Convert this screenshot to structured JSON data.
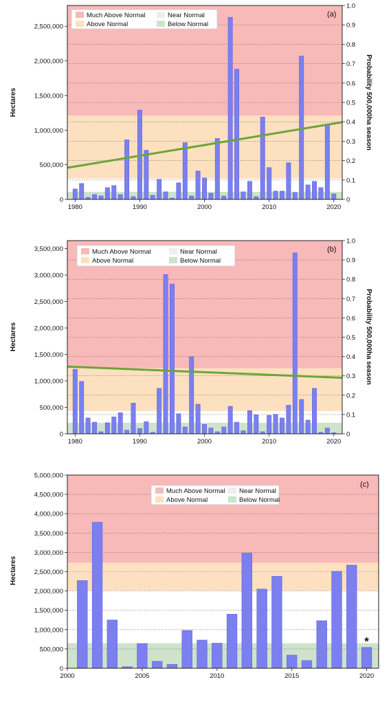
{
  "colors": {
    "much_above": "#f8b9b9",
    "above": "#fde0c0",
    "near": "#ffffff",
    "below": "#cfe3cc",
    "bar_fill": "#7b7fef",
    "bar_stroke": "#5b5fd6",
    "trend": "#6aa53a",
    "legend_near_swatch": "#eeeeee"
  },
  "legend": {
    "much_above": "Much Above Normal",
    "near": "Near Normal",
    "above": "Above Normal",
    "below": "Below Normal"
  },
  "chart_data": [
    {
      "type": "bar",
      "panel_label": "(a)",
      "ylabel": "Hectares",
      "y2label": "Probability 500,000ha season",
      "x": [
        1980,
        1981,
        1982,
        1983,
        1984,
        1985,
        1986,
        1987,
        1988,
        1989,
        1990,
        1991,
        1992,
        1993,
        1994,
        1995,
        1996,
        1997,
        1998,
        1999,
        2000,
        2001,
        2002,
        2003,
        2004,
        2005,
        2006,
        2007,
        2008,
        2009,
        2010,
        2011,
        2012,
        2013,
        2014,
        2015,
        2016,
        2017,
        2018,
        2019,
        2020
      ],
      "values": [
        150000,
        230000,
        30000,
        70000,
        50000,
        170000,
        200000,
        70000,
        860000,
        40000,
        1290000,
        710000,
        60000,
        290000,
        110000,
        20000,
        240000,
        820000,
        50000,
        410000,
        310000,
        90000,
        880000,
        50000,
        2630000,
        1880000,
        110000,
        260000,
        40000,
        1190000,
        460000,
        120000,
        120000,
        530000,
        100000,
        2070000,
        210000,
        260000,
        170000,
        1090000,
        80000
      ],
      "xlim": [
        1978.8,
        2021.3
      ],
      "ylim": [
        0,
        2800000
      ],
      "y2lim": [
        0,
        1.0
      ],
      "xticks": [
        1980,
        1990,
        2000,
        2010,
        2020
      ],
      "yticks": [
        0,
        500000,
        1000000,
        1500000,
        2000000,
        2500000
      ],
      "ytick_labels": [
        "0",
        "500,000",
        "1,000,000",
        "1,500,000",
        "2,000,000",
        "2,500,000"
      ],
      "y2ticks": [
        0,
        0.1,
        0.2,
        0.3,
        0.4,
        0.5,
        0.6,
        0.7,
        0.8,
        0.9,
        1.0
      ],
      "y2tick_labels": [
        "0",
        "0.1",
        "0.2",
        "0.3",
        "0.4",
        "0.5",
        "0.6",
        "0.7",
        "0.8",
        "0.9",
        "1.0"
      ],
      "bands": {
        "below": [
          0,
          110000
        ],
        "near": [
          110000,
          300000
        ],
        "above": [
          300000,
          1210000
        ],
        "much_above": [
          1210000,
          2800000
        ]
      },
      "trend": {
        "x": [
          1978.8,
          2021.3
        ],
        "y2": [
          0.163,
          0.398
        ]
      },
      "legend_placement": "top-left"
    },
    {
      "type": "bar",
      "panel_label": "(b)",
      "ylabel": "Hectares",
      "y2label": "Probability 500,000ha season",
      "x": [
        1980,
        1981,
        1982,
        1983,
        1984,
        1985,
        1986,
        1987,
        1988,
        1989,
        1990,
        1991,
        1992,
        1993,
        1994,
        1995,
        1996,
        1997,
        1998,
        1999,
        2000,
        2001,
        2002,
        2003,
        2004,
        2005,
        2006,
        2007,
        2008,
        2009,
        2010,
        2011,
        2012,
        2013,
        2014,
        2015,
        2016,
        2017,
        2018,
        2019,
        2020
      ],
      "values": [
        1220000,
        990000,
        300000,
        220000,
        40000,
        210000,
        320000,
        400000,
        70000,
        580000,
        100000,
        230000,
        30000,
        860000,
        3010000,
        2830000,
        380000,
        130000,
        1460000,
        560000,
        180000,
        110000,
        40000,
        130000,
        520000,
        220000,
        60000,
        440000,
        360000,
        40000,
        350000,
        370000,
        300000,
        540000,
        3420000,
        650000,
        260000,
        860000,
        30000,
        110000,
        20000
      ],
      "xlim": [
        1978.8,
        2021.3
      ],
      "ylim": [
        0,
        3650000
      ],
      "y2lim": [
        0,
        1.0
      ],
      "xticks": [
        1980,
        1990,
        2000,
        2010,
        2020
      ],
      "yticks": [
        0,
        500000,
        1000000,
        1500000,
        2000000,
        2500000,
        3000000,
        3500000
      ],
      "ytick_labels": [
        "0",
        "500,000",
        "1,000,000",
        "1,500,000",
        "2,000,000",
        "2,500,000",
        "3,000,000",
        "3,500,000"
      ],
      "y2ticks": [
        0,
        0.1,
        0.2,
        0.3,
        0.4,
        0.5,
        0.6,
        0.7,
        0.8,
        0.9,
        1.0
      ],
      "y2tick_labels": [
        "0",
        "0.1",
        "0.2",
        "0.3",
        "0.4",
        "0.5",
        "0.6",
        "0.7",
        "0.8",
        "0.9",
        "1.0"
      ],
      "bands": {
        "below": [
          0,
          210000
        ],
        "near": [
          210000,
          430000
        ],
        "above": [
          430000,
          1240000
        ],
        "much_above": [
          1240000,
          3650000
        ]
      },
      "trend": {
        "x": [
          1978.8,
          2021.3
        ],
        "y2": [
          0.348,
          0.29
        ]
      },
      "legend_placement": "top-left"
    },
    {
      "type": "bar",
      "panel_label": "(c)",
      "ylabel": "Hectares",
      "x": [
        2001,
        2002,
        2003,
        2004,
        2005,
        2006,
        2007,
        2008,
        2009,
        2010,
        2011,
        2012,
        2013,
        2014,
        2015,
        2016,
        2017,
        2018,
        2019,
        2020
      ],
      "values": [
        2270000,
        3780000,
        1250000,
        40000,
        640000,
        180000,
        100000,
        980000,
        730000,
        650000,
        1400000,
        2980000,
        2050000,
        2380000,
        340000,
        200000,
        1230000,
        2510000,
        2670000,
        540000
      ],
      "xlim": [
        2000,
        2020.8
      ],
      "ylim": [
        0,
        5000000
      ],
      "xticks": [
        2000,
        2005,
        2010,
        2015,
        2020
      ],
      "yticks": [
        0,
        500000,
        1000000,
        1500000,
        2000000,
        2500000,
        3000000,
        3500000,
        4000000,
        4500000,
        5000000
      ],
      "ytick_labels": [
        "0",
        "500,000",
        "1,000,000",
        "1,500,000",
        "2,000,000",
        "2,500,000",
        "3,000,000",
        "3,500,000",
        "4,000,000",
        "4,500,000",
        "5,000,000"
      ],
      "bands": {
        "below": [
          0,
          650000
        ],
        "near": [
          650000,
          2010000
        ],
        "above": [
          2010000,
          2730000
        ],
        "much_above": [
          2730000,
          5000000
        ]
      },
      "annotations": [
        {
          "x": 2020,
          "text": "*"
        }
      ],
      "legend_placement": "top-center"
    }
  ]
}
